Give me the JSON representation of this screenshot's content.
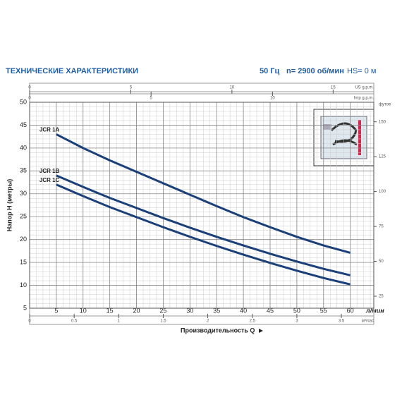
{
  "chart_data": {
    "type": "line",
    "title": "ТЕХНИЧЕСКИЕ ХАРАКТЕРИСТИКИ",
    "conditions": [
      "50 Гц",
      "n= 2900 об/мин",
      "HS= 0 м"
    ],
    "xlabel": "Производительность Q",
    "xunit": "л/мин",
    "ylabel": "Напор H (метры)",
    "y2label": "футов",
    "x": [
      5,
      10,
      15,
      20,
      25,
      30,
      35,
      40,
      45,
      50,
      55,
      60
    ],
    "series": [
      {
        "name": "JCR 1A",
        "color": "#1b3f78",
        "values": [
          43,
          40,
          37.3,
          34.8,
          32.3,
          29.8,
          27.3,
          24.9,
          22.7,
          20.6,
          18.7,
          17.1
        ]
      },
      {
        "name": "JCR 1B",
        "color": "#1b3f78",
        "values": [
          34,
          31.5,
          29.1,
          26.9,
          24.7,
          22.6,
          20.6,
          18.7,
          16.9,
          15.2,
          13.6,
          12.2
        ]
      },
      {
        "name": "JCR 1C",
        "color": "#1b3f78",
        "values": [
          32,
          29.5,
          27.1,
          24.9,
          22.7,
          20.6,
          18.6,
          16.7,
          14.9,
          13.2,
          11.6,
          10.2
        ]
      }
    ],
    "xlim": [
      0,
      64.4
    ],
    "xticks": [
      5,
      10,
      15,
      20,
      25,
      30,
      35,
      40,
      45,
      50,
      55,
      60
    ],
    "ylim": [
      5,
      50
    ],
    "yticks": [
      5,
      10,
      15,
      20,
      25,
      30,
      35,
      40,
      45,
      50
    ],
    "y2lim": [
      16.4,
      164
    ],
    "y2ticks": [
      25,
      50,
      75,
      100,
      125,
      150
    ],
    "secondary_x_axes": [
      {
        "label": "US g.p.m.",
        "position": "top",
        "xlim": [
          0,
          17.01
        ],
        "xticks": [
          0,
          5,
          10,
          15
        ]
      },
      {
        "label": "Imp g.p.m.",
        "position": "top",
        "xlim": [
          0,
          14.17
        ],
        "xticks": [
          0,
          5,
          10
        ]
      },
      {
        "label": "м³/час",
        "position": "bottom",
        "xlim": [
          0,
          3.864
        ],
        "xticks": [
          0,
          0.5,
          1,
          1.5,
          2,
          2.5,
          3,
          3.5
        ]
      }
    ],
    "grid": true
  }
}
